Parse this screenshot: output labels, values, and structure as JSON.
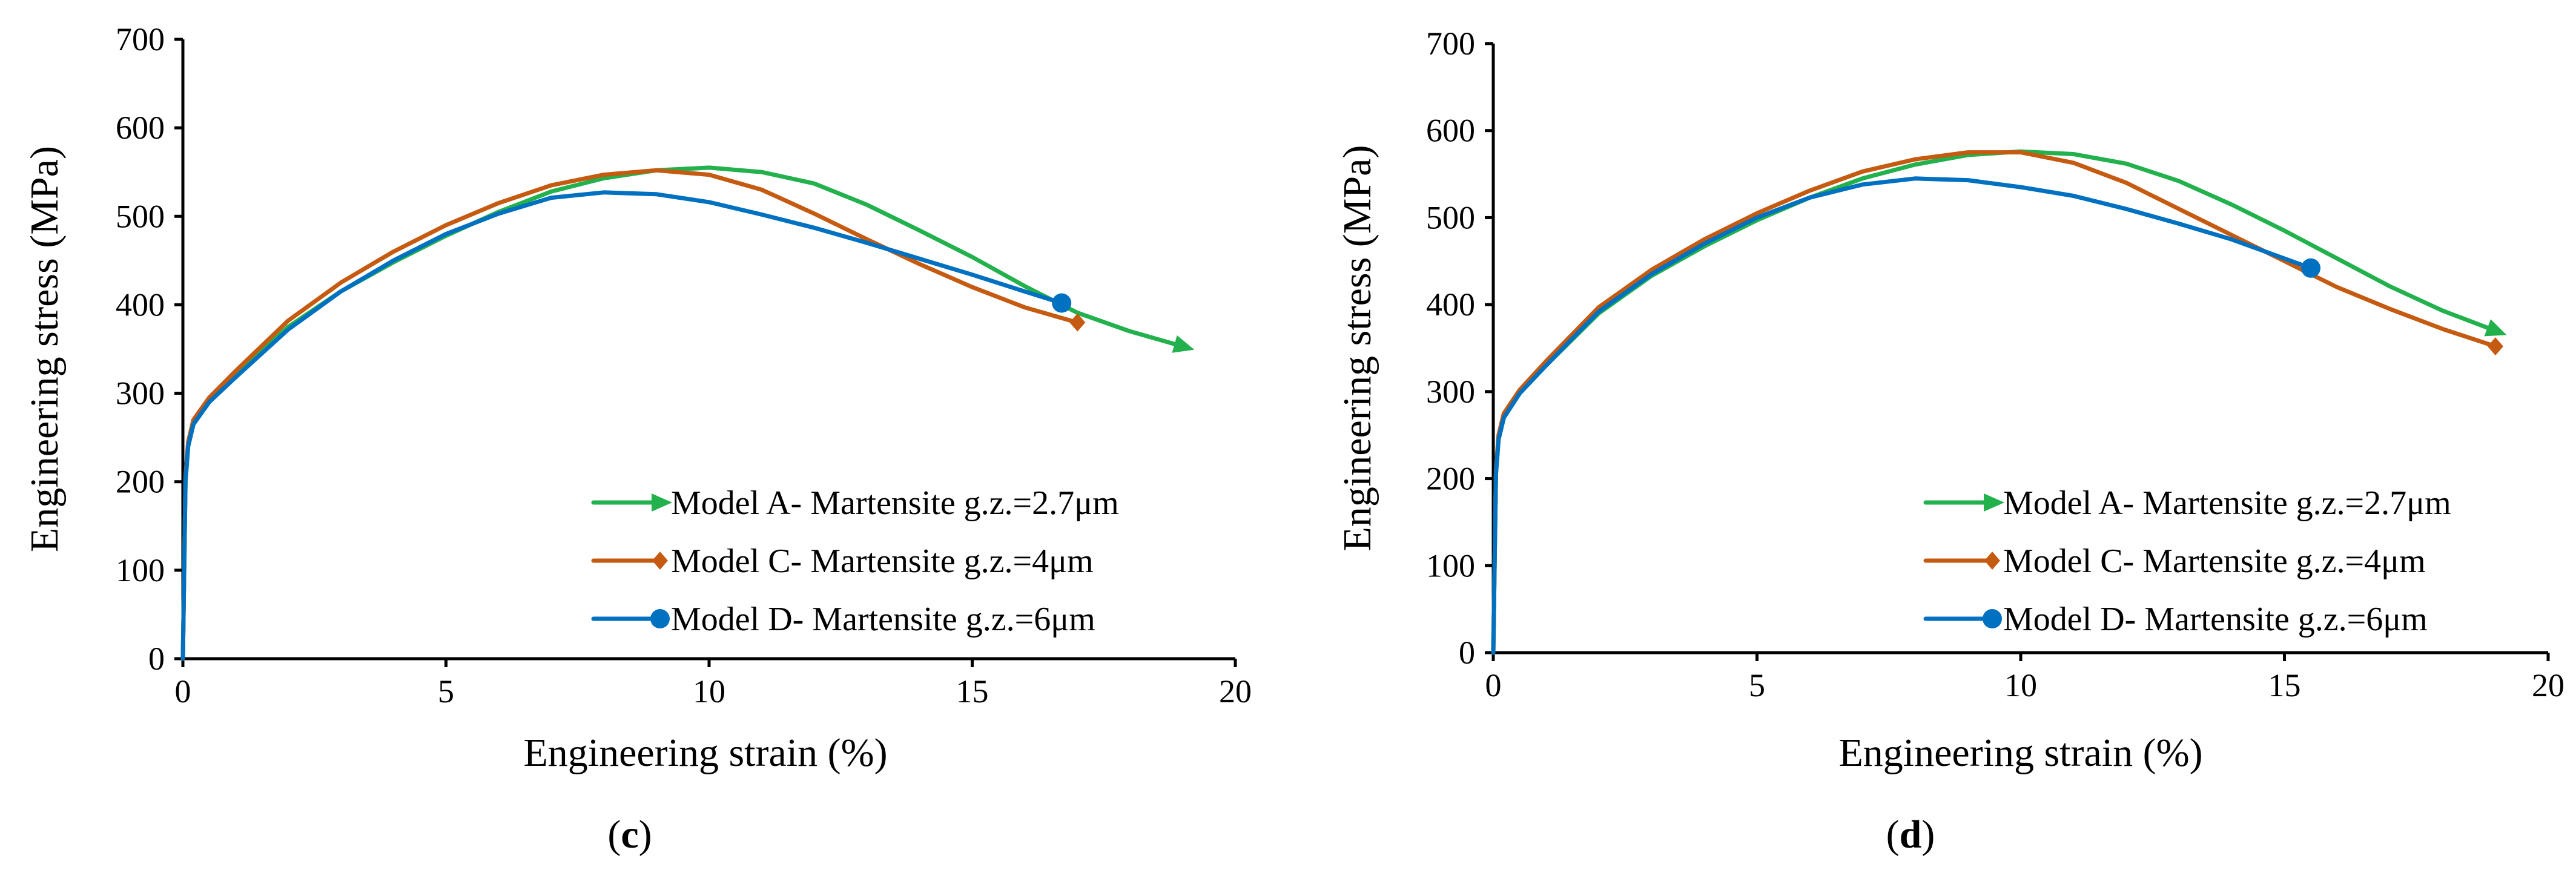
{
  "colors": {
    "model_a": "#22b14c",
    "model_c": "#c55a11",
    "model_d": "#0070c0",
    "axis": "#000000"
  },
  "chart_data": [
    {
      "type": "line",
      "panel_label": "(c)",
      "xlabel": "Engineering strain (%)",
      "ylabel": "Engineering stress (MPa)",
      "xlim": [
        0,
        20
      ],
      "ylim": [
        0,
        700
      ],
      "xticks": [
        0,
        5,
        10,
        15,
        20
      ],
      "yticks": [
        0,
        100,
        200,
        300,
        400,
        500,
        600,
        700
      ],
      "legend_position": "lower-right",
      "series": [
        {
          "name": "Model A- Martensite g.z.=2.7μm",
          "marker": "arrow",
          "x": [
            0,
            0.05,
            0.1,
            0.2,
            0.5,
            1,
            2,
            3,
            4,
            5,
            6,
            7,
            8,
            9,
            10,
            11,
            12,
            13,
            14,
            15,
            16,
            17,
            18,
            19
          ],
          "y": [
            0,
            200,
            240,
            265,
            290,
            320,
            375,
            415,
            448,
            478,
            505,
            528,
            543,
            552,
            555,
            550,
            537,
            513,
            484,
            454,
            421,
            391,
            370,
            353
          ]
        },
        {
          "name": "Model C- Martensite g.z.=4μm",
          "marker": "diamond",
          "x": [
            0,
            0.05,
            0.1,
            0.2,
            0.5,
            1,
            2,
            3,
            4,
            5,
            6,
            7,
            8,
            9,
            10,
            11,
            12,
            13,
            14,
            15,
            16,
            17
          ],
          "y": [
            0,
            205,
            245,
            270,
            295,
            325,
            382,
            425,
            460,
            490,
            515,
            535,
            547,
            552,
            547,
            530,
            503,
            474,
            446,
            420,
            397,
            380
          ]
        },
        {
          "name": "Model D- Martensite g.z.=6μm",
          "marker": "circle",
          "x": [
            0,
            0.05,
            0.1,
            0.2,
            0.5,
            1,
            2,
            3,
            4,
            5,
            6,
            7,
            8,
            9,
            10,
            11,
            12,
            13,
            14,
            15,
            16,
            16.7
          ],
          "y": [
            0,
            200,
            240,
            265,
            290,
            318,
            372,
            415,
            450,
            480,
            503,
            521,
            527,
            525,
            516,
            502,
            487,
            470,
            452,
            434,
            415,
            402
          ]
        }
      ]
    },
    {
      "type": "line",
      "panel_label": "(d)",
      "xlabel": "Engineering strain (%)",
      "ylabel": "Engineering stress (MPa)",
      "xlim": [
        0,
        20
      ],
      "ylim": [
        0,
        700
      ],
      "xticks": [
        0,
        5,
        10,
        15,
        20
      ],
      "yticks": [
        0,
        100,
        200,
        300,
        400,
        500,
        600,
        700
      ],
      "legend_position": "lower-right",
      "series": [
        {
          "name": "Model A- Martensite g.z.=2.7μm",
          "marker": "arrow",
          "x": [
            0,
            0.05,
            0.1,
            0.2,
            0.5,
            1,
            2,
            3,
            4,
            5,
            6,
            7,
            8,
            9,
            10,
            11,
            12,
            13,
            14,
            15,
            16,
            17,
            18,
            19
          ],
          "y": [
            0,
            205,
            245,
            270,
            298,
            330,
            390,
            433,
            467,
            497,
            523,
            545,
            561,
            572,
            576,
            573,
            562,
            542,
            515,
            485,
            453,
            421,
            393,
            370
          ]
        },
        {
          "name": "Model C- Martensite g.z.=4μm",
          "marker": "diamond",
          "x": [
            0,
            0.05,
            0.1,
            0.2,
            0.5,
            1,
            2,
            3,
            4,
            5,
            6,
            7,
            8,
            9,
            10,
            11,
            12,
            13,
            14,
            15,
            16,
            17,
            18,
            19
          ],
          "y": [
            0,
            210,
            250,
            275,
            302,
            335,
            397,
            440,
            475,
            505,
            531,
            553,
            567,
            575,
            575,
            563,
            540,
            510,
            480,
            450,
            420,
            395,
            372,
            352
          ]
        },
        {
          "name": "Model D- Martensite g.z.=6μm",
          "marker": "circle",
          "x": [
            0,
            0.05,
            0.1,
            0.2,
            0.5,
            1,
            2,
            3,
            4,
            5,
            6,
            7,
            8,
            9,
            10,
            11,
            12,
            13,
            14,
            15,
            15.5
          ],
          "y": [
            0,
            205,
            245,
            270,
            298,
            330,
            392,
            435,
            470,
            500,
            523,
            538,
            545,
            543,
            535,
            525,
            510,
            493,
            475,
            453,
            442
          ]
        }
      ]
    }
  ]
}
